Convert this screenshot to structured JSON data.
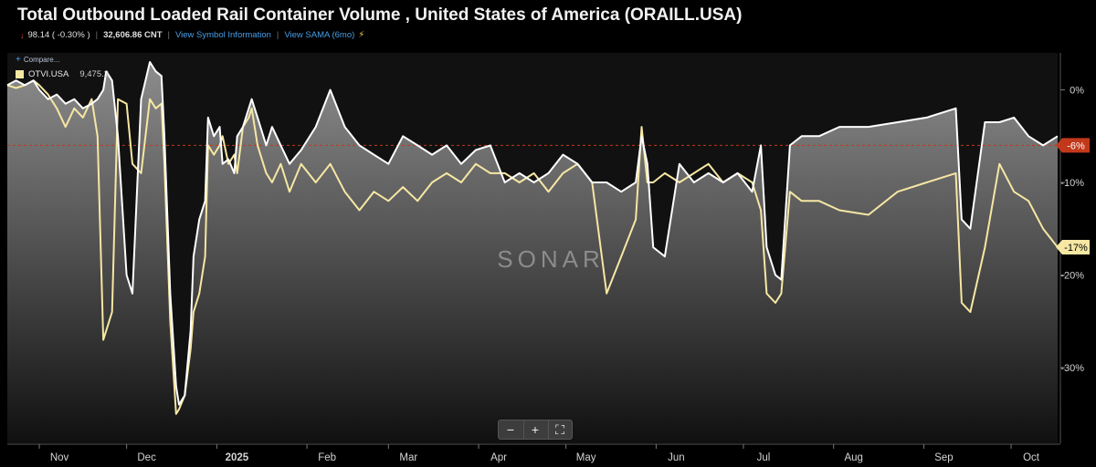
{
  "header": {
    "title": "Total Outbound Loaded Rail Container Volume , United States of America (ORAILL.USA)",
    "change": "98.14 ( -0.30% )",
    "value": "32,606.86 CNT",
    "symbol_link": "View Symbol Information",
    "sama_link": "View SAMA (6mo)"
  },
  "compare_label": "Compare...",
  "legend": {
    "series_name": "OTVI.USA",
    "series_value": "9,475.3"
  },
  "watermark": "SONAR",
  "zoom": {
    "minus": "−",
    "plus": "+",
    "fit": "⛶"
  },
  "colors": {
    "background": "#000000",
    "primary_line": "#ffffff",
    "secondary_line": "#f6e7a3",
    "primary_badge": "#c2381b",
    "secondary_badge": "#f6e7a3",
    "reference_line": "#c2381b"
  },
  "chart_data": {
    "type": "area",
    "x_labels": [
      "Nov",
      "Dec",
      "2025",
      "Feb",
      "Mar",
      "Apr",
      "May",
      "Jun",
      "Jul",
      "Aug",
      "Sep",
      "Oct"
    ],
    "y_ticks": [
      "0%",
      "-10%",
      "-20%",
      "-30%"
    ],
    "ylim": [
      -36,
      3.5
    ],
    "grid": false,
    "last_value_labels": [
      {
        "series": "ORAILL.USA",
        "label": "-6%",
        "value": -6
      },
      {
        "series": "OTVI.USA",
        "label": "-17%",
        "value": -17
      }
    ],
    "series": [
      {
        "name": "ORAILL.USA",
        "x": [
          -11,
          -8,
          -5,
          -2,
          0,
          3,
          6,
          9,
          12,
          15,
          18,
          20,
          22,
          23,
          25,
          27,
          30,
          32,
          35,
          38,
          40,
          42,
          43,
          45,
          47,
          48,
          50,
          52,
          53,
          55,
          57,
          58,
          60,
          62,
          63,
          65,
          67,
          68,
          70,
          72,
          73,
          75,
          78,
          80,
          83,
          86,
          90,
          95,
          100,
          105,
          110,
          115,
          120,
          125,
          130,
          135,
          140,
          145,
          150,
          155,
          160,
          165,
          170,
          175,
          180,
          185,
          190,
          195,
          200,
          205,
          207,
          209,
          211,
          215,
          220,
          225,
          230,
          235,
          240,
          245,
          248,
          250,
          253,
          255,
          258,
          262,
          268,
          275,
          285,
          295,
          305,
          315,
          317,
          320,
          325,
          330,
          335,
          340,
          345,
          350
        ],
        "y": [
          0.5,
          1,
          0.5,
          1,
          0,
          -1,
          -0.5,
          -1.5,
          -1,
          -2,
          -1.5,
          -1,
          0,
          2,
          1,
          -5,
          -20,
          -22,
          -1,
          3,
          2,
          1.5,
          -5,
          -22,
          -32,
          -34,
          -33,
          -26,
          -18,
          -14,
          -12,
          -3,
          -5,
          -4,
          -8,
          -7.5,
          -9,
          -5,
          -4,
          -2,
          -1,
          -3,
          -6,
          -4,
          -6,
          -8,
          -6.5,
          -4,
          0,
          -4,
          -6,
          -7,
          -8,
          -5,
          -6,
          -7,
          -6,
          -8,
          -6.5,
          -6,
          -10,
          -9,
          -10,
          -9,
          -7,
          -8,
          -10,
          -10,
          -11,
          -10,
          -5,
          -8,
          -17,
          -18,
          -8,
          -10,
          -9,
          -10,
          -9,
          -11,
          -6,
          -17,
          -20,
          -20.5,
          -6,
          -5,
          -5,
          -4,
          -4,
          -3.5,
          -3,
          -2,
          -14,
          -15,
          -3.5,
          -3.5,
          -3,
          -5,
          -6,
          -5
        ]
      },
      {
        "name": "OTVI.USA",
        "x": [
          -11,
          -8,
          -5,
          -2,
          0,
          3,
          6,
          9,
          12,
          15,
          18,
          20,
          22,
          23,
          25,
          27,
          30,
          32,
          35,
          38,
          40,
          42,
          43,
          45,
          47,
          48,
          50,
          52,
          53,
          55,
          57,
          58,
          60,
          62,
          63,
          65,
          67,
          68,
          70,
          72,
          73,
          75,
          78,
          80,
          83,
          86,
          90,
          95,
          100,
          105,
          110,
          115,
          120,
          125,
          130,
          135,
          140,
          145,
          150,
          155,
          160,
          165,
          170,
          175,
          180,
          185,
          190,
          195,
          200,
          205,
          207,
          209,
          211,
          215,
          220,
          225,
          230,
          235,
          240,
          245,
          248,
          250,
          253,
          255,
          258,
          262,
          268,
          275,
          285,
          295,
          305,
          315,
          317,
          320,
          325,
          330,
          335,
          340,
          345,
          350
        ],
        "y": [
          0.5,
          0.2,
          0.5,
          1,
          0.5,
          -0.5,
          -2,
          -4,
          -2,
          -3,
          -1,
          -5,
          -27,
          -26,
          -24,
          -1,
          -1.5,
          -8,
          -9,
          -1,
          -2,
          -1.5,
          -8,
          -25,
          -35,
          -34.5,
          -33,
          -28,
          -24,
          -22,
          -18,
          -6,
          -7,
          -6,
          -5,
          -8,
          -7,
          -9,
          -4,
          -3,
          -2,
          -6,
          -9,
          -10,
          -8,
          -11,
          -8,
          -10,
          -8,
          -11,
          -13,
          -11,
          -12,
          -10.5,
          -12,
          -10,
          -9,
          -10,
          -8,
          -9,
          -9,
          -10,
          -9,
          -11,
          -9,
          -8,
          -10,
          -22,
          -18,
          -14,
          -4,
          -10,
          -10,
          -9,
          -10,
          -9,
          -8,
          -10,
          -9,
          -10,
          -13,
          -22,
          -23,
          -22,
          -11,
          -12,
          -12,
          -13,
          -13.5,
          -11,
          -10,
          -9,
          -23,
          -24,
          -17,
          -8,
          -11,
          -12,
          -15,
          -17
        ]
      }
    ]
  }
}
